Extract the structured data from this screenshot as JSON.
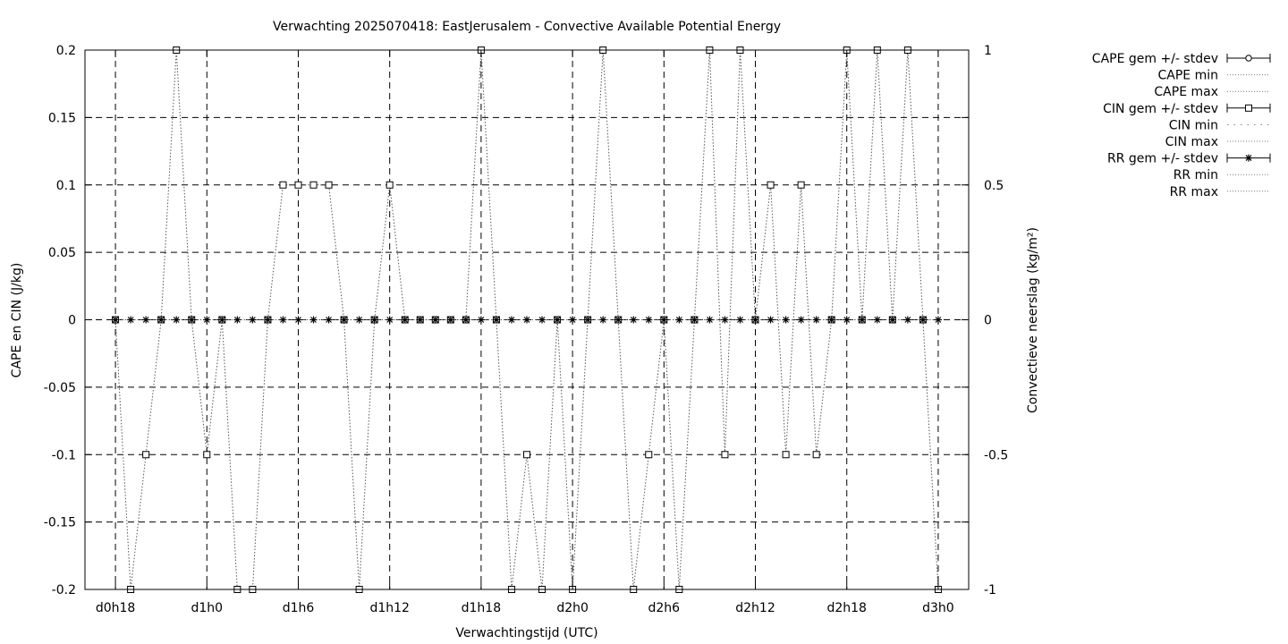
{
  "chart_data": {
    "type": "line",
    "title": "Verwachting 2025070418: EastJerusalem - Convective Available Potential Energy",
    "xlabel": "Verwachtingstijd (UTC)",
    "ylabel_left": "CAPE en CIN (J/kg)",
    "ylabel_right": "Convectieve neerslag (kg/m²)",
    "ylim_left": [
      -0.2,
      0.2
    ],
    "ylim_right": [
      -1,
      1
    ],
    "yticks_left": [
      "0.2",
      "0.15",
      "0.1",
      "0.05",
      "0",
      "-0.05",
      "-0.1",
      "-0.15",
      "-0.2"
    ],
    "yticks_right": [
      "1",
      "0.5",
      "0",
      "-0.5",
      "-1"
    ],
    "x_range_hours": [
      -2,
      56
    ],
    "x_tick_hours": [
      0,
      6,
      12,
      18,
      24,
      30,
      36,
      42,
      48,
      54
    ],
    "x_tick_labels": [
      "d0h18",
      "d1h0",
      "d1h6",
      "d1h12",
      "d1h18",
      "d2h0",
      "d2h6",
      "d2h12",
      "d2h18",
      "d3h0"
    ],
    "grid": true,
    "legend_position": "right-outside",
    "legend": [
      {
        "label": "CAPE gem +/- stdev",
        "style": "errorbar-circle"
      },
      {
        "label": "CAPE min",
        "style": "dotted"
      },
      {
        "label": "CAPE max",
        "style": "dotted"
      },
      {
        "label": "CIN gem +/- stdev",
        "style": "errorbar-square"
      },
      {
        "label": "CIN min",
        "style": "dotted-sparse"
      },
      {
        "label": "CIN max",
        "style": "dotted"
      },
      {
        "label": "RR gem +/- stdev",
        "style": "errorbar-star"
      },
      {
        "label": "RR min",
        "style": "dotted"
      },
      {
        "label": "RR max",
        "style": "dotted"
      }
    ],
    "series": [
      {
        "name": "CIN gem +/- stdev",
        "marker": "square",
        "x": [
          0,
          1,
          2,
          3,
          4,
          5,
          6,
          7,
          8,
          9,
          10,
          11,
          12,
          13,
          14,
          15,
          16,
          17,
          18,
          19,
          20,
          21,
          22,
          23,
          24,
          25,
          26,
          27,
          28,
          29,
          30,
          31,
          32,
          33,
          34,
          35,
          36,
          37,
          38,
          39,
          40,
          41,
          42,
          43,
          44,
          45,
          46,
          47,
          48,
          49,
          50,
          51,
          52,
          53,
          54
        ],
        "y": [
          0,
          -0.2,
          -0.1,
          0,
          0.2,
          0,
          -0.1,
          0,
          -0.2,
          -0.2,
          0,
          0.1,
          0.1,
          0.1,
          0.1,
          0,
          -0.2,
          0,
          0.1,
          0,
          0,
          0,
          0,
          0,
          0.2,
          0,
          -0.2,
          -0.1,
          -0.2,
          0,
          -0.2,
          0,
          0.2,
          0,
          -0.2,
          -0.1,
          0,
          -0.2,
          0,
          0.2,
          -0.1,
          0.2,
          0,
          0.1,
          -0.1,
          0.1,
          -0.1,
          0,
          0.2,
          0,
          0.2,
          0,
          0.2,
          0,
          -0.2
        ]
      },
      {
        "name": "RR gem +/- stdev",
        "marker": "star",
        "x": [
          0,
          1,
          2,
          3,
          4,
          5,
          6,
          7,
          8,
          9,
          10,
          11,
          12,
          13,
          14,
          15,
          16,
          17,
          18,
          19,
          20,
          21,
          22,
          23,
          24,
          25,
          26,
          27,
          28,
          29,
          30,
          31,
          32,
          33,
          34,
          35,
          36,
          37,
          38,
          39,
          40,
          41,
          42,
          43,
          44,
          45,
          46,
          47,
          48,
          49,
          50,
          51,
          52,
          53,
          54
        ],
        "y": [
          0,
          0,
          0,
          0,
          0,
          0,
          0,
          0,
          0,
          0,
          0,
          0,
          0,
          0,
          0,
          0,
          0,
          0,
          0,
          0,
          0,
          0,
          0,
          0,
          0,
          0,
          0,
          0,
          0,
          0,
          0,
          0,
          0,
          0,
          0,
          0,
          0,
          0,
          0,
          0,
          0,
          0,
          0,
          0,
          0,
          0,
          0,
          0,
          0,
          0,
          0,
          0,
          0,
          0,
          0
        ]
      }
    ]
  }
}
